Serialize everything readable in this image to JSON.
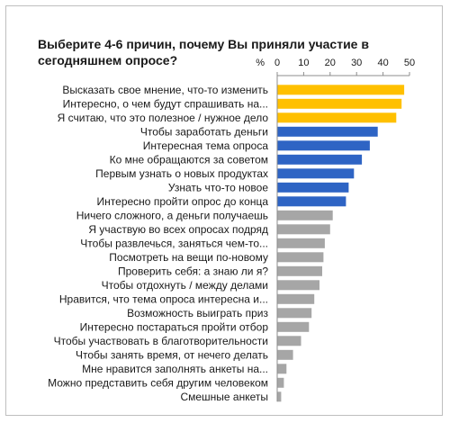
{
  "chart_data": {
    "type": "bar",
    "orientation": "horizontal",
    "title": "Выберите 4-6 причин, почему Вы приняли участие в сегодняшнем опросе?",
    "unit": "%",
    "xlim": [
      0,
      50
    ],
    "ticks": [
      0,
      10,
      20,
      30,
      40,
      50
    ],
    "grid": false,
    "colors": {
      "highlight": "#FFC000",
      "primary": "#2E64C4",
      "other": "#A6A6A6"
    },
    "categories": [
      "Высказать свое мнение, что-то изменить",
      "Интересно, о чем будут спрашивать на...",
      "Я считаю, что это полезное / нужное дело",
      "Чтобы заработать деньги",
      "Интересная тема опроса",
      "Ко мне обращаются за советом",
      "Первым узнать о новых продуктах",
      "Узнать что-то новое",
      "Интересно пройти опрос до конца",
      "Ничего сложного, а деньги получаешь",
      "Я участвую во всех опросах подряд",
      "Чтобы развлечься, заняться чем-то...",
      "Посмотреть на вещи по-новому",
      "Проверить себя: а знаю ли я?",
      "Чтобы отдохнуть / между делами",
      "Нравится, что тема опроса интересна и...",
      "Возможность выиграть приз",
      "Интересно постараться пройти отбор",
      "Чтобы участвовать в благотворительности",
      "Чтобы занять время, от нечего делать",
      "Мне нравится заполнять анкеты на...",
      "Можно представить себя другим человеком",
      "Смешные анкеты"
    ],
    "values": [
      48,
      47,
      45,
      38,
      35,
      32,
      29,
      27,
      26,
      21,
      20,
      18,
      17.5,
      17,
      16,
      14,
      13,
      12,
      9,
      6,
      3.5,
      2.5,
      1.5
    ],
    "bar_colors": [
      "highlight",
      "highlight",
      "highlight",
      "primary",
      "primary",
      "primary",
      "primary",
      "primary",
      "primary",
      "other",
      "other",
      "other",
      "other",
      "other",
      "other",
      "other",
      "other",
      "other",
      "other",
      "other",
      "other",
      "other",
      "other"
    ]
  }
}
